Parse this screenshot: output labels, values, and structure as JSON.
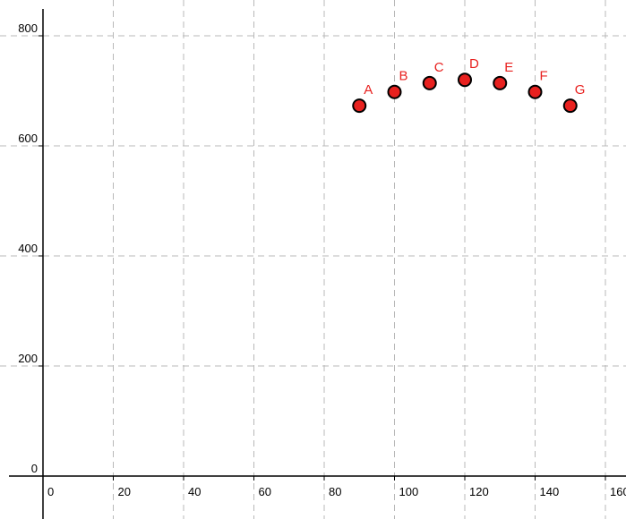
{
  "chart_data": {
    "type": "scatter",
    "title": "",
    "xlabel": "",
    "ylabel": "",
    "xlim": [
      -5,
      163
    ],
    "ylim": [
      -20,
      840
    ],
    "grid": true,
    "x_ticks": [
      0,
      20,
      40,
      60,
      80,
      100,
      120,
      140,
      160
    ],
    "y_ticks": [
      0,
      200,
      400,
      600,
      800
    ],
    "points": [
      {
        "label": "A",
        "x": 90,
        "y": 673
      },
      {
        "label": "B",
        "x": 100,
        "y": 698
      },
      {
        "label": "C",
        "x": 110,
        "y": 714
      },
      {
        "label": "D",
        "x": 120,
        "y": 720
      },
      {
        "label": "E",
        "x": 130,
        "y": 714
      },
      {
        "label": "F",
        "x": 140,
        "y": 698
      },
      {
        "label": "G",
        "x": 150,
        "y": 673
      }
    ],
    "colors": {
      "point_fill": "#e8211f",
      "point_label": "#e8211f",
      "grid": "#b8b8b8",
      "axis": "#000000"
    }
  }
}
